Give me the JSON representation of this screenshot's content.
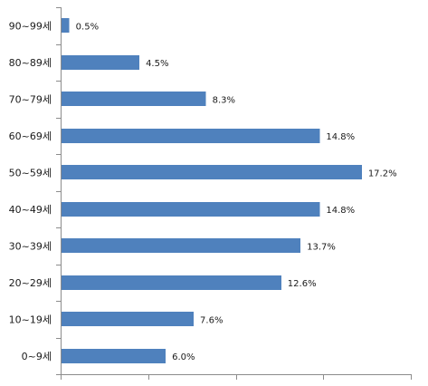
{
  "chart_data": {
    "type": "bar",
    "orientation": "horizontal",
    "categories": [
      "90~99세",
      "80~89세",
      "70~79세",
      "60~69세",
      "50~59세",
      "40~49세",
      "30~39세",
      "20~29세",
      "10~19세",
      "0~9세"
    ],
    "values": [
      0.5,
      4.5,
      8.3,
      14.8,
      17.2,
      14.8,
      13.7,
      12.6,
      7.6,
      6.0
    ],
    "value_labels": [
      "0.5%",
      "4.5%",
      "8.3%",
      "14.8%",
      "17.2%",
      "14.8%",
      "13.7%",
      "12.6%",
      "7.6%",
      "6.0%"
    ],
    "xlim": [
      0,
      20
    ],
    "x_major_unit": 5,
    "grid": false,
    "legend": "none",
    "bar_color": "#4f81bd",
    "axis_color": "#8c8c8c"
  }
}
